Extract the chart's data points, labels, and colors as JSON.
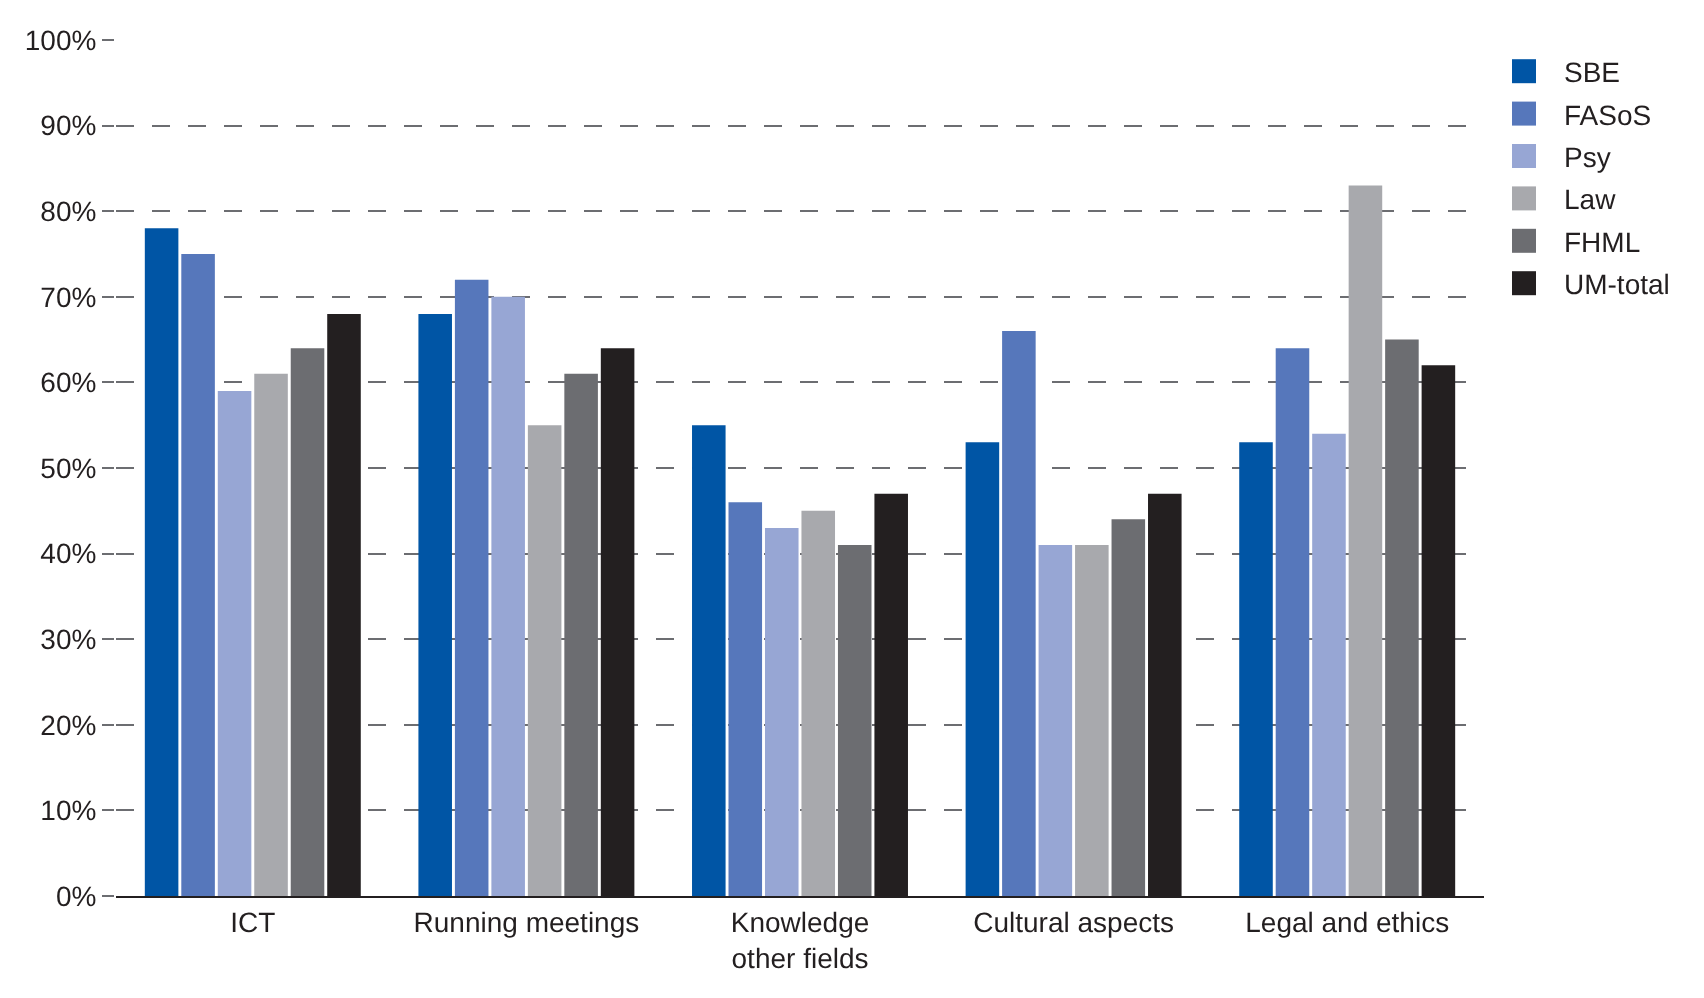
{
  "chart_data": {
    "type": "bar",
    "categories": [
      "ICT",
      "Running meetings",
      "Knowledge other fields",
      "Cultural aspects",
      "Legal and ethics"
    ],
    "series": [
      {
        "name": "SBE",
        "color": "#0055a5",
        "values": [
          78,
          68,
          55,
          53,
          53
        ]
      },
      {
        "name": "FASoS",
        "color": "#5677bb",
        "values": [
          75,
          72,
          46,
          66,
          64
        ]
      },
      {
        "name": "Psy",
        "color": "#97a6d4",
        "values": [
          59,
          70,
          43,
          41,
          54
        ]
      },
      {
        "name": "Law",
        "color": "#a8a9ad",
        "values": [
          61,
          55,
          45,
          41,
          83
        ]
      },
      {
        "name": "FHML",
        "color": "#6c6d71",
        "values": [
          64,
          61,
          41,
          44,
          65
        ]
      },
      {
        "name": "UM-total",
        "color": "#231f20",
        "values": [
          68,
          64,
          47,
          47,
          62
        ]
      }
    ],
    "ylim": [
      0,
      100
    ],
    "yticks": [
      {
        "value": 0,
        "label": "0%"
      },
      {
        "value": 10,
        "label": "10%"
      },
      {
        "value": 20,
        "label": "20%"
      },
      {
        "value": 30,
        "label": "30%"
      },
      {
        "value": 40,
        "label": "40%"
      },
      {
        "value": 50,
        "label": "50%"
      },
      {
        "value": 60,
        "label": "60%"
      },
      {
        "value": 70,
        "label": "70%"
      },
      {
        "value": 80,
        "label": "80%"
      },
      {
        "value": 90,
        "label": "90%"
      },
      {
        "value": 100,
        "label": "100%"
      }
    ],
    "grid": "y",
    "legend": "top right"
  }
}
